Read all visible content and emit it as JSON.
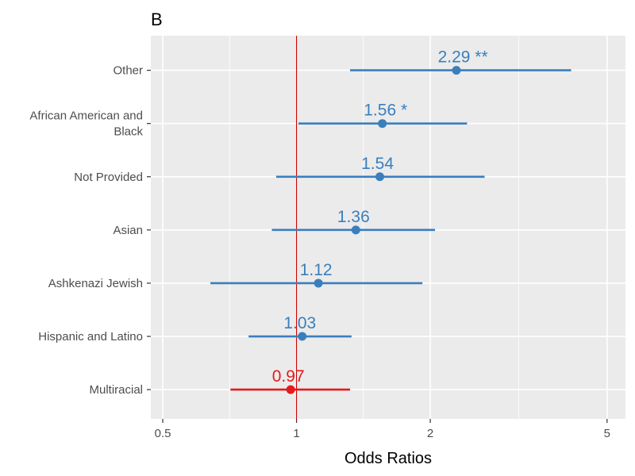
{
  "chart_data": {
    "type": "forest",
    "panel_tag": "B",
    "xlabel": "Odds Ratios",
    "x_scale": "log",
    "xlim": [
      0.47,
      5.5
    ],
    "x_ticks": [
      {
        "value": 0.5,
        "label": "0.5"
      },
      {
        "value": 1,
        "label": "1"
      },
      {
        "value": 2,
        "label": "2"
      },
      {
        "value": 5,
        "label": "5"
      }
    ],
    "x_minor_ticks": [
      0.707,
      1.414,
      3.162
    ],
    "reference_line": 1,
    "grid": true,
    "colors": {
      "significant_high": "#3a7fbd",
      "below_one": "#e41a1c",
      "reference_line": "#cc0000",
      "panel_background": "#ebebeb",
      "grid": "#ffffff"
    },
    "rows": [
      {
        "category": [
          "Other"
        ],
        "estimate": 2.29,
        "ci_low": 1.32,
        "ci_high": 4.15,
        "label": "2.29 **",
        "color": "#3a7fbd"
      },
      {
        "category": [
          "African American and",
          "Black"
        ],
        "estimate": 1.56,
        "ci_low": 1.01,
        "ci_high": 2.42,
        "label": "1.56 *",
        "color": "#3a7fbd"
      },
      {
        "category": [
          "Not Provided"
        ],
        "estimate": 1.54,
        "ci_low": 0.9,
        "ci_high": 2.65,
        "label": "1.54",
        "color": "#3a7fbd"
      },
      {
        "category": [
          "Asian"
        ],
        "estimate": 1.36,
        "ci_low": 0.88,
        "ci_high": 2.05,
        "label": "1.36",
        "color": "#3a7fbd"
      },
      {
        "category": [
          "Ashkenazi Jewish"
        ],
        "estimate": 1.12,
        "ci_low": 0.64,
        "ci_high": 1.92,
        "label": "1.12",
        "color": "#3a7fbd"
      },
      {
        "category": [
          "Hispanic and Latino"
        ],
        "estimate": 1.03,
        "ci_low": 0.78,
        "ci_high": 1.33,
        "label": "1.03",
        "color": "#3a7fbd"
      },
      {
        "category": [
          "Multiracial"
        ],
        "estimate": 0.97,
        "ci_low": 0.71,
        "ci_high": 1.32,
        "label": "0.97",
        "color": "#e41a1c"
      }
    ]
  }
}
